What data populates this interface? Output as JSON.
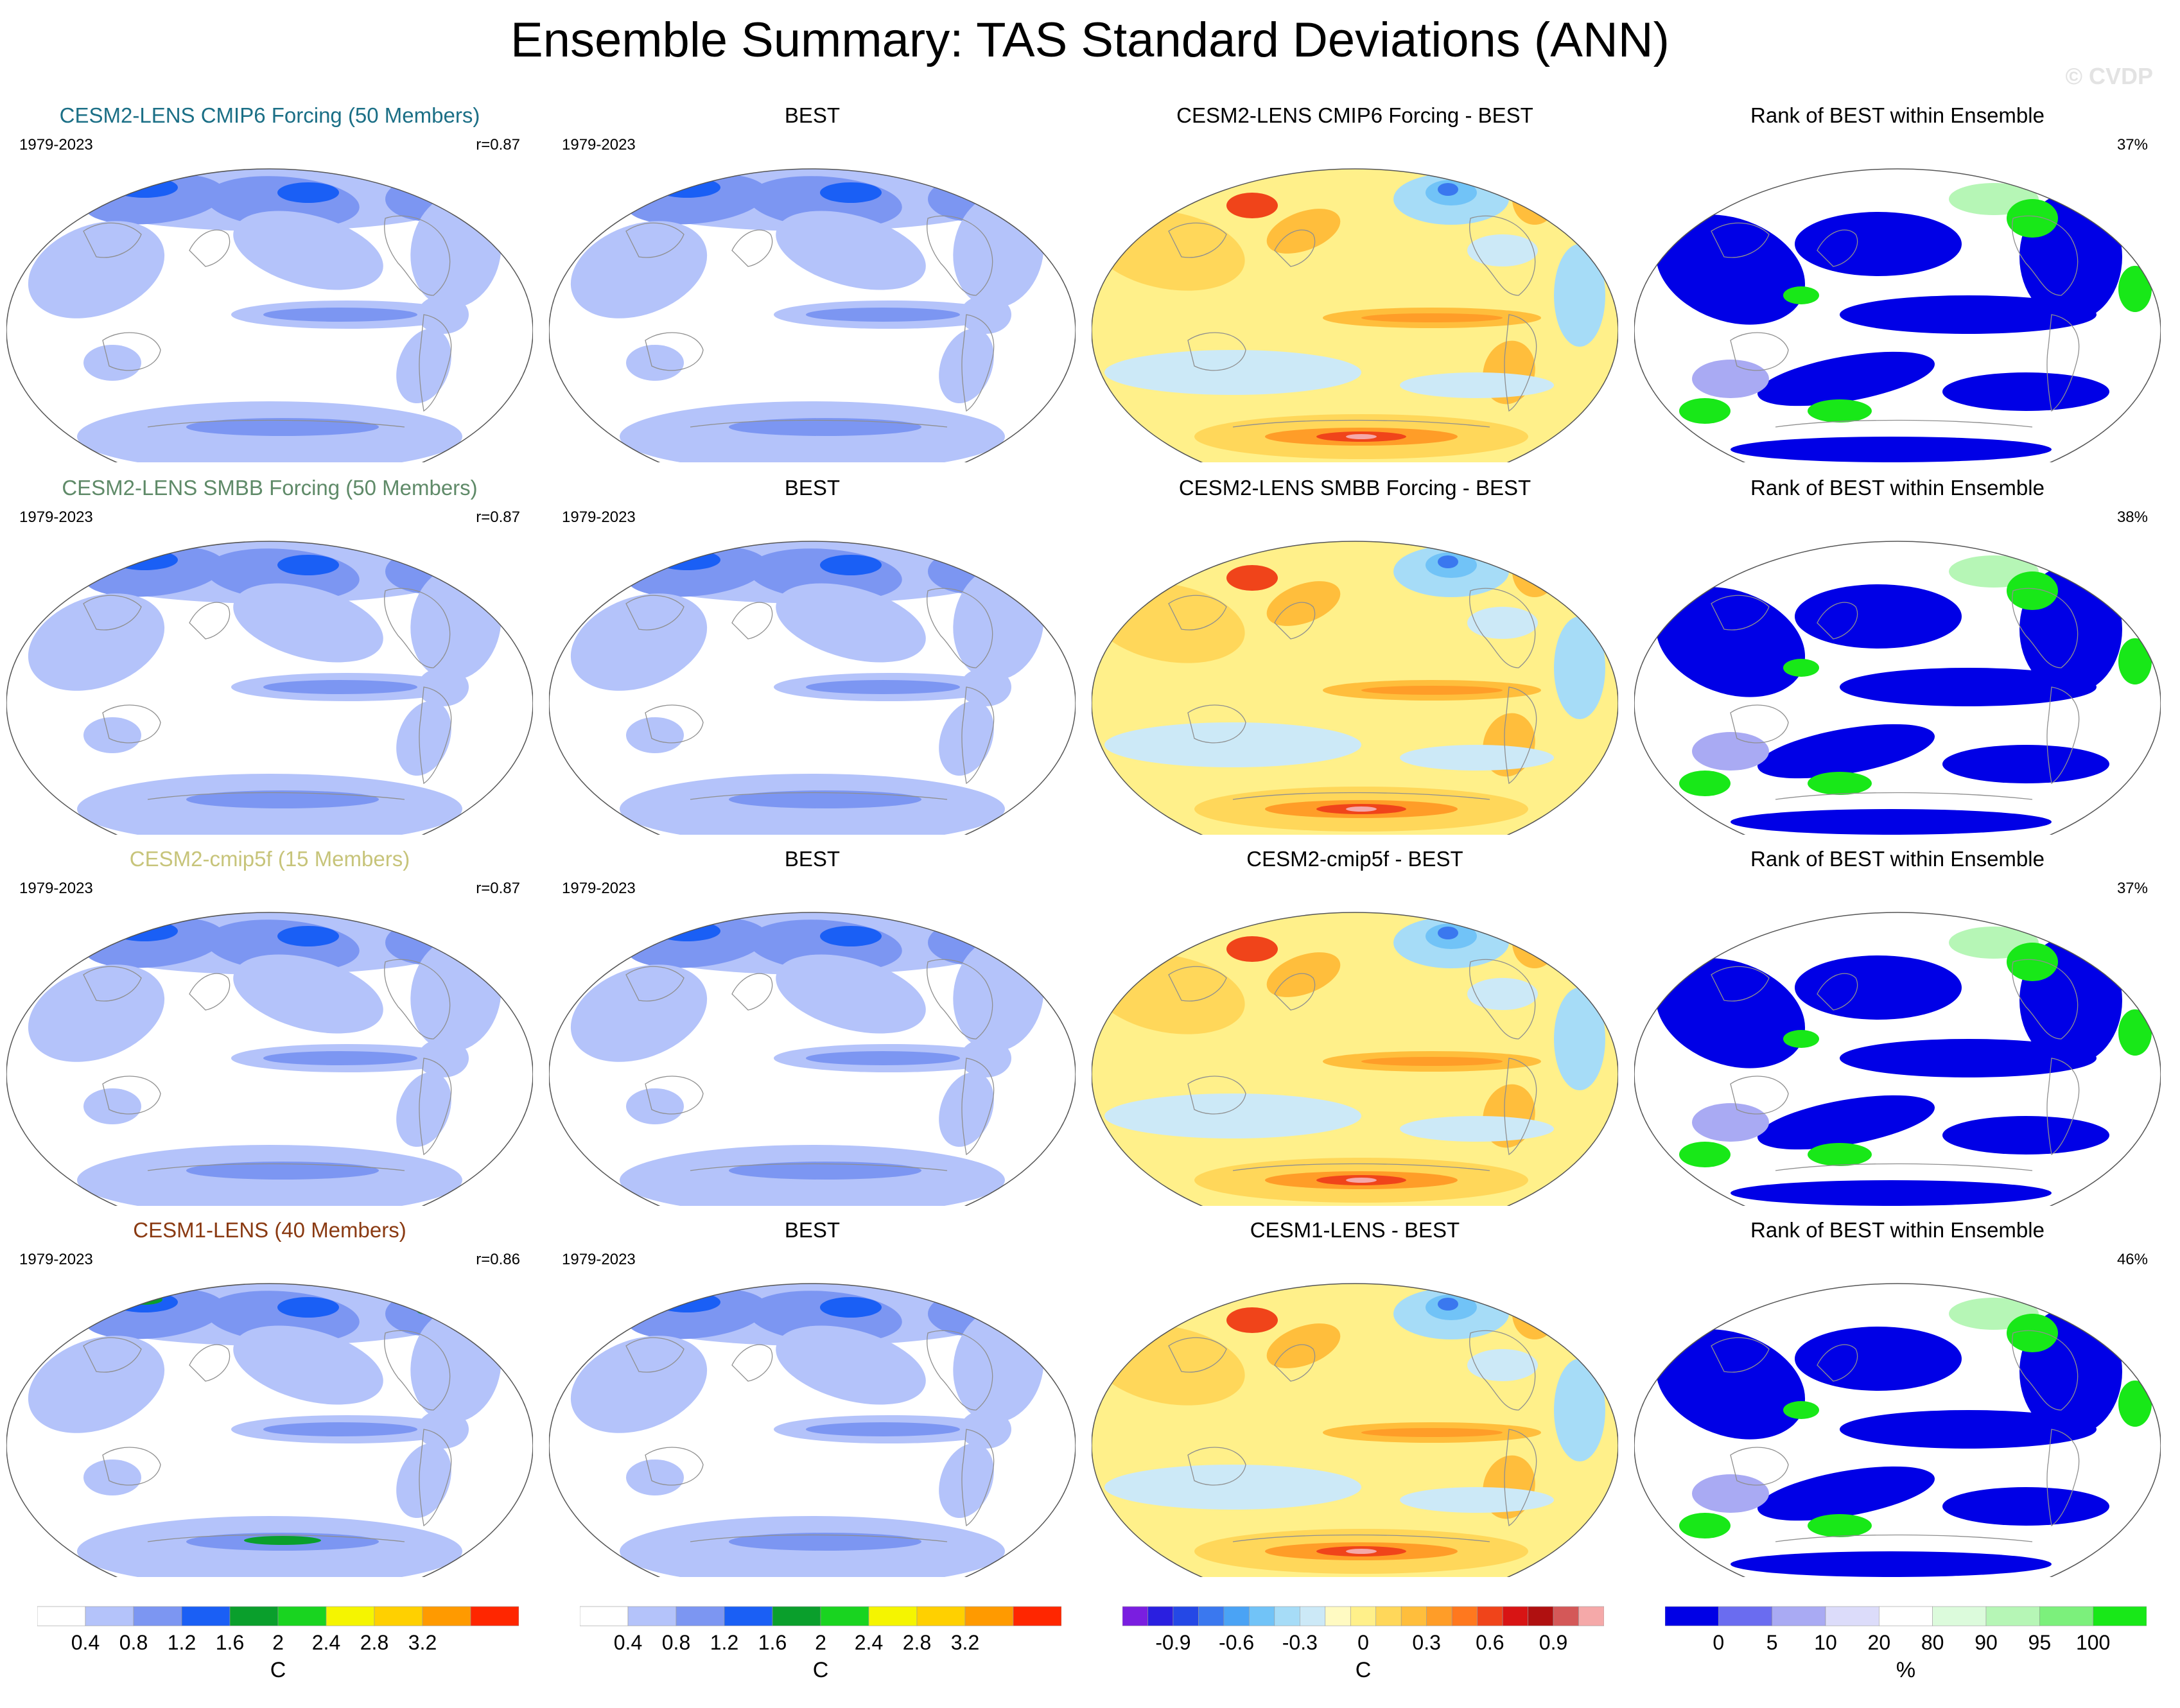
{
  "figure": {
    "title": "Ensemble Summary: TAS Standard Deviations (ANN)",
    "watermark": "© CVDP"
  },
  "rows": [
    {
      "ensemble": {
        "title": "CESM2-LENS CMIP6 Forcing (50 Members)",
        "title_color": "#1b6f86",
        "period": "1979-2023",
        "pattern_corr": "r=0.87"
      },
      "obs": {
        "title": "BEST",
        "period": "1979-2023"
      },
      "diff": {
        "title": "CESM2-LENS CMIP6 Forcing - BEST"
      },
      "rank": {
        "title": "Rank of BEST within Ensemble",
        "percent": "37%"
      }
    },
    {
      "ensemble": {
        "title": "CESM2-LENS SMBB Forcing (50 Members)",
        "title_color": "#5f8a68",
        "period": "1979-2023",
        "pattern_corr": "r=0.87"
      },
      "obs": {
        "title": "BEST",
        "period": "1979-2023"
      },
      "diff": {
        "title": "CESM2-LENS SMBB Forcing - BEST"
      },
      "rank": {
        "title": "Rank of BEST within Ensemble",
        "percent": "38%"
      }
    },
    {
      "ensemble": {
        "title": "CESM2-cmip5f (15 Members)",
        "title_color": "#c7c47a",
        "period": "1979-2023",
        "pattern_corr": "r=0.87"
      },
      "obs": {
        "title": "BEST",
        "period": "1979-2023"
      },
      "diff": {
        "title": "CESM2-cmip5f - BEST"
      },
      "rank": {
        "title": "Rank of BEST within Ensemble",
        "percent": "37%"
      }
    },
    {
      "ensemble": {
        "title": "CESM1-LENS (40 Members)",
        "title_color": "#8a3a12",
        "period": "1979-2023",
        "pattern_corr": "r=0.86"
      },
      "obs": {
        "title": "BEST",
        "period": "1979-2023"
      },
      "diff": {
        "title": "CESM1-LENS - BEST"
      },
      "rank": {
        "title": "Rank of BEST within Ensemble",
        "percent": "46%"
      }
    }
  ],
  "colorbars": {
    "stddev": {
      "unit": "C",
      "ticks": [
        "0.4",
        "0.8",
        "1.2",
        "1.6",
        "2",
        "2.4",
        "2.8",
        "3.2"
      ],
      "colors": [
        "#ffffff",
        "#b4c3fa",
        "#7c96f2",
        "#1a5ff5",
        "#0a9f2c",
        "#19d420",
        "#f5f500",
        "#ffd000",
        "#ff9a00",
        "#ff2600"
      ]
    },
    "difference": {
      "unit": "C",
      "ticks": [
        "-0.9",
        "-0.6",
        "-0.3",
        "0",
        "0.3",
        "0.6",
        "0.9"
      ],
      "colors": [
        "#7a1ee0",
        "#2a1fe0",
        "#2448e6",
        "#3a78ef",
        "#4aa3f5",
        "#71c3f7",
        "#a6dcf7",
        "#cce9f7",
        "#fffac2",
        "#fff08a",
        "#ffd75a",
        "#ffbe3c",
        "#ff9d28",
        "#ff781e",
        "#f0441a",
        "#d81414",
        "#b01010",
        "#d45858",
        "#f5a9a9"
      ]
    },
    "rank": {
      "unit": "%",
      "ticks": [
        "0",
        "5",
        "10",
        "20",
        "80",
        "90",
        "95",
        "100"
      ],
      "colors": [
        "#0000e6",
        "#6a6cf0",
        "#a9aaf3",
        "#dcdcfa",
        "#ffffff",
        "#dcfbdc",
        "#b6f6b6",
        "#7cf07c",
        "#18e818"
      ]
    }
  }
}
